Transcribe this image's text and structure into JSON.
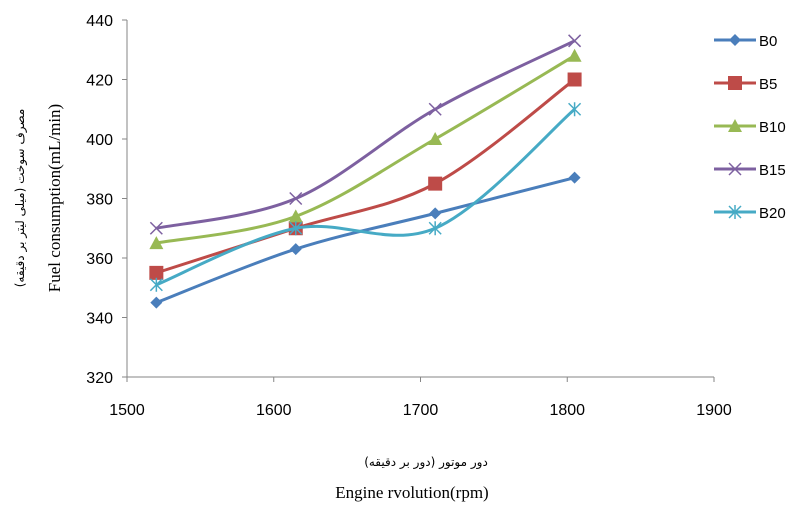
{
  "chart_data": {
    "type": "line",
    "x": [
      1520,
      1615,
      1710,
      1805
    ],
    "series": [
      {
        "name": "B0",
        "values": [
          345,
          363,
          375,
          387
        ],
        "color": "#4A7EBB",
        "marker": "diamond"
      },
      {
        "name": "B5",
        "values": [
          355,
          370,
          385,
          420
        ],
        "color": "#BE4B48",
        "marker": "square"
      },
      {
        "name": "B10",
        "values": [
          365,
          374,
          400,
          428
        ],
        "color": "#98B954",
        "marker": "triangle"
      },
      {
        "name": "B15",
        "values": [
          370,
          380,
          410,
          433
        ],
        "color": "#7D60A0",
        "marker": "x"
      },
      {
        "name": "B20",
        "values": [
          351,
          370,
          370,
          410
        ],
        "color": "#46AAC5",
        "marker": "star"
      }
    ],
    "xlim": [
      1500,
      1900
    ],
    "ylim": [
      320,
      440
    ],
    "xticks": [
      1500,
      1600,
      1700,
      1800,
      1900
    ],
    "yticks": [
      320,
      340,
      360,
      380,
      400,
      420,
      440
    ],
    "xlabel_fa": "دور موتور (دور بر دقیقه)",
    "xlabel_en": "Engine rvolution(rpm)",
    "ylabel_fa": "مصرف سوخت  (میلی لیتر بر دقیقه)",
    "ylabel_en": "Fuel consumption(mL/min)",
    "legend_position": "right",
    "grid": false,
    "smooth": true
  }
}
